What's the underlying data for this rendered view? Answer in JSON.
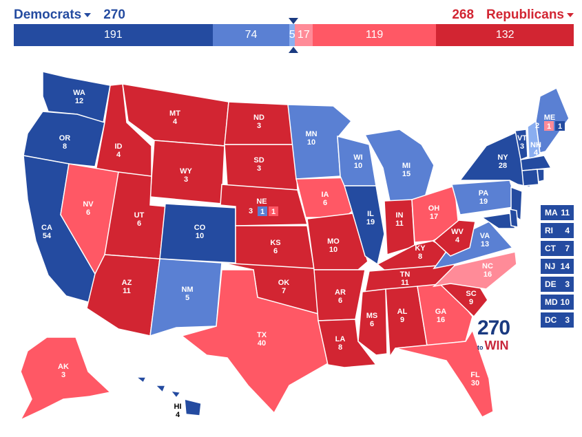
{
  "header": {
    "dem_label": "Democrats",
    "dem_total": "270",
    "rep_label": "Republicans",
    "rep_total": "268"
  },
  "bar": [
    {
      "label": "191",
      "value": 191,
      "color": "#244ba0"
    },
    {
      "label": "74",
      "value": 74,
      "color": "#5a80d3"
    },
    {
      "label": "5",
      "value": 5,
      "color": "#8aaef0"
    },
    {
      "label": "17",
      "value": 17,
      "color": "#ff8b98"
    },
    {
      "label": "119",
      "value": 119,
      "color": "#ff5865"
    },
    {
      "label": "132",
      "value": 132,
      "color": "#d22532"
    }
  ],
  "colors": {
    "safe_dem": "#244ba0",
    "likely_dem": "#5a80d3",
    "lean_dem": "#8aaef0",
    "lean_rep": "#ff8b98",
    "likely_rep": "#ff5865",
    "safe_rep": "#d22532"
  },
  "states": [
    {
      "abbr": "WA",
      "ev": "12"
    },
    {
      "abbr": "OR",
      "ev": "8"
    },
    {
      "abbr": "CA",
      "ev": "54"
    },
    {
      "abbr": "ID",
      "ev": "4"
    },
    {
      "abbr": "NV",
      "ev": "6"
    },
    {
      "abbr": "MT",
      "ev": "4"
    },
    {
      "abbr": "WY",
      "ev": "3"
    },
    {
      "abbr": "UT",
      "ev": "6"
    },
    {
      "abbr": "CO",
      "ev": "10"
    },
    {
      "abbr": "AZ",
      "ev": "11"
    },
    {
      "abbr": "NM",
      "ev": "5"
    },
    {
      "abbr": "ND",
      "ev": "3"
    },
    {
      "abbr": "SD",
      "ev": "3"
    },
    {
      "abbr": "NE",
      "ev": "3"
    },
    {
      "abbr": "KS",
      "ev": "6"
    },
    {
      "abbr": "OK",
      "ev": "7"
    },
    {
      "abbr": "TX",
      "ev": "40"
    },
    {
      "abbr": "MN",
      "ev": "10"
    },
    {
      "abbr": "IA",
      "ev": "6"
    },
    {
      "abbr": "MO",
      "ev": "10"
    },
    {
      "abbr": "AR",
      "ev": "6"
    },
    {
      "abbr": "LA",
      "ev": "8"
    },
    {
      "abbr": "WI",
      "ev": "10"
    },
    {
      "abbr": "IL",
      "ev": "19"
    },
    {
      "abbr": "MI",
      "ev": "15"
    },
    {
      "abbr": "IN",
      "ev": "11"
    },
    {
      "abbr": "OH",
      "ev": "17"
    },
    {
      "abbr": "KY",
      "ev": "8"
    },
    {
      "abbr": "TN",
      "ev": "11"
    },
    {
      "abbr": "MS",
      "ev": "6"
    },
    {
      "abbr": "AL",
      "ev": "9"
    },
    {
      "abbr": "GA",
      "ev": "16"
    },
    {
      "abbr": "FL",
      "ev": "30"
    },
    {
      "abbr": "SC",
      "ev": "9"
    },
    {
      "abbr": "NC",
      "ev": "16"
    },
    {
      "abbr": "VA",
      "ev": "13"
    },
    {
      "abbr": "WV",
      "ev": "4"
    },
    {
      "abbr": "PA",
      "ev": "19"
    },
    {
      "abbr": "NY",
      "ev": "28"
    },
    {
      "abbr": "VT",
      "ev": "3"
    },
    {
      "abbr": "NH",
      "ev": "4"
    },
    {
      "abbr": "ME",
      "ev": ""
    },
    {
      "abbr": "AK",
      "ev": "3"
    },
    {
      "abbr": "HI",
      "ev": "4"
    }
  ],
  "ne_districts": {
    "statewide": "3",
    "d1": "1",
    "d2": "1"
  },
  "me_districts": {
    "d2": "2",
    "d1a": "1",
    "d1b": "1"
  },
  "small_states": [
    {
      "abbr": "MA",
      "ev": "11"
    },
    {
      "abbr": "RI",
      "ev": "4"
    },
    {
      "abbr": "CT",
      "ev": "7"
    },
    {
      "abbr": "NJ",
      "ev": "14"
    },
    {
      "abbr": "DE",
      "ev": "3"
    },
    {
      "abbr": "MD",
      "ev": "10"
    },
    {
      "abbr": "DC",
      "ev": "3"
    }
  ],
  "logo": {
    "number": "270",
    "to": "to",
    "win": "WIN"
  }
}
